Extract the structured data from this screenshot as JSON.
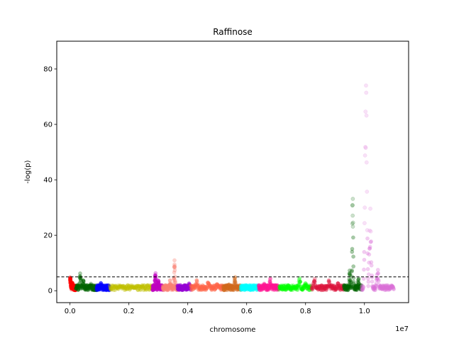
{
  "chart_data": {
    "type": "scatter",
    "title": "Raffinose",
    "xlabel": "chromosome",
    "ylabel": "-log(p)",
    "x_offset_text": "1e7",
    "xlim": [
      -450000,
      11500000
    ],
    "ylim": [
      -4.3,
      90
    ],
    "x_ticks": [
      0,
      2000000,
      4000000,
      6000000,
      8000000,
      10000000
    ],
    "x_tick_labels": [
      "0.0",
      "0.2",
      "0.4",
      "0.6",
      "0.8",
      "1.0"
    ],
    "y_ticks": [
      0,
      20,
      40,
      60,
      80
    ],
    "y_tick_labels": [
      "0",
      "20",
      "40",
      "60",
      "80"
    ],
    "threshold": 5,
    "threshold_style": "dashed",
    "grid": false,
    "legend": "none",
    "segments": [
      {
        "start": 0,
        "end": 200000,
        "color": "#ff0000",
        "peaks": [
          [
            10000,
            5
          ],
          [
            80000,
            3
          ]
        ]
      },
      {
        "start": 200000,
        "end": 900000,
        "color": "#006400",
        "peaks": [
          [
            350000,
            7
          ],
          [
            450000,
            5
          ],
          [
            700000,
            3
          ]
        ]
      },
      {
        "start": 900000,
        "end": 1350000,
        "color": "#0000ff",
        "peaks": [
          [
            1050000,
            3
          ]
        ]
      },
      {
        "start": 1350000,
        "end": 2800000,
        "color": "#bfbf00",
        "peaks": [
          [
            1700000,
            2
          ],
          [
            2200000,
            2
          ]
        ]
      },
      {
        "start": 2800000,
        "end": 3150000,
        "color": "#bf00bf",
        "peaks": [
          [
            2900000,
            7
          ],
          [
            3000000,
            4
          ]
        ]
      },
      {
        "start": 3150000,
        "end": 3650000,
        "color": "#fa8072",
        "peaks": [
          [
            3550000,
            11
          ],
          [
            3400000,
            4
          ]
        ]
      },
      {
        "start": 3650000,
        "end": 4100000,
        "color": "#9400d3",
        "peaks": [
          [
            3900000,
            2
          ],
          [
            4050000,
            3
          ]
        ]
      },
      {
        "start": 4100000,
        "end": 5200000,
        "color": "#ff6347",
        "peaks": [
          [
            4300000,
            4
          ],
          [
            4700000,
            4
          ],
          [
            5000000,
            3
          ]
        ]
      },
      {
        "start": 5200000,
        "end": 5800000,
        "color": "#d2691e",
        "peaks": [
          [
            5600000,
            6
          ],
          [
            5400000,
            3
          ]
        ]
      },
      {
        "start": 5800000,
        "end": 6400000,
        "color": "#00ffff",
        "peaks": [
          [
            6000000,
            2
          ],
          [
            6300000,
            2
          ]
        ]
      },
      {
        "start": 6400000,
        "end": 7100000,
        "color": "#ff1493",
        "peaks": [
          [
            6800000,
            5
          ],
          [
            6600000,
            3
          ]
        ]
      },
      {
        "start": 7100000,
        "end": 8200000,
        "color": "#00ff00",
        "peaks": [
          [
            7800000,
            5
          ],
          [
            7400000,
            2
          ],
          [
            8000000,
            3
          ]
        ]
      },
      {
        "start": 8200000,
        "end": 9300000,
        "color": "#dc143c",
        "peaks": [
          [
            8300000,
            5
          ],
          [
            8800000,
            4
          ],
          [
            9100000,
            3
          ]
        ]
      },
      {
        "start": 9300000,
        "end": 9900000,
        "color": "#006400",
        "peaks": [
          [
            9600000,
            35
          ],
          [
            9500000,
            8
          ],
          [
            9800000,
            5
          ]
        ]
      },
      {
        "start": 9900000,
        "end": 11000000,
        "color": "#da70d6",
        "peaks": [
          [
            10050000,
            84
          ],
          [
            10200000,
            30
          ],
          [
            10450000,
            8
          ]
        ]
      }
    ]
  }
}
